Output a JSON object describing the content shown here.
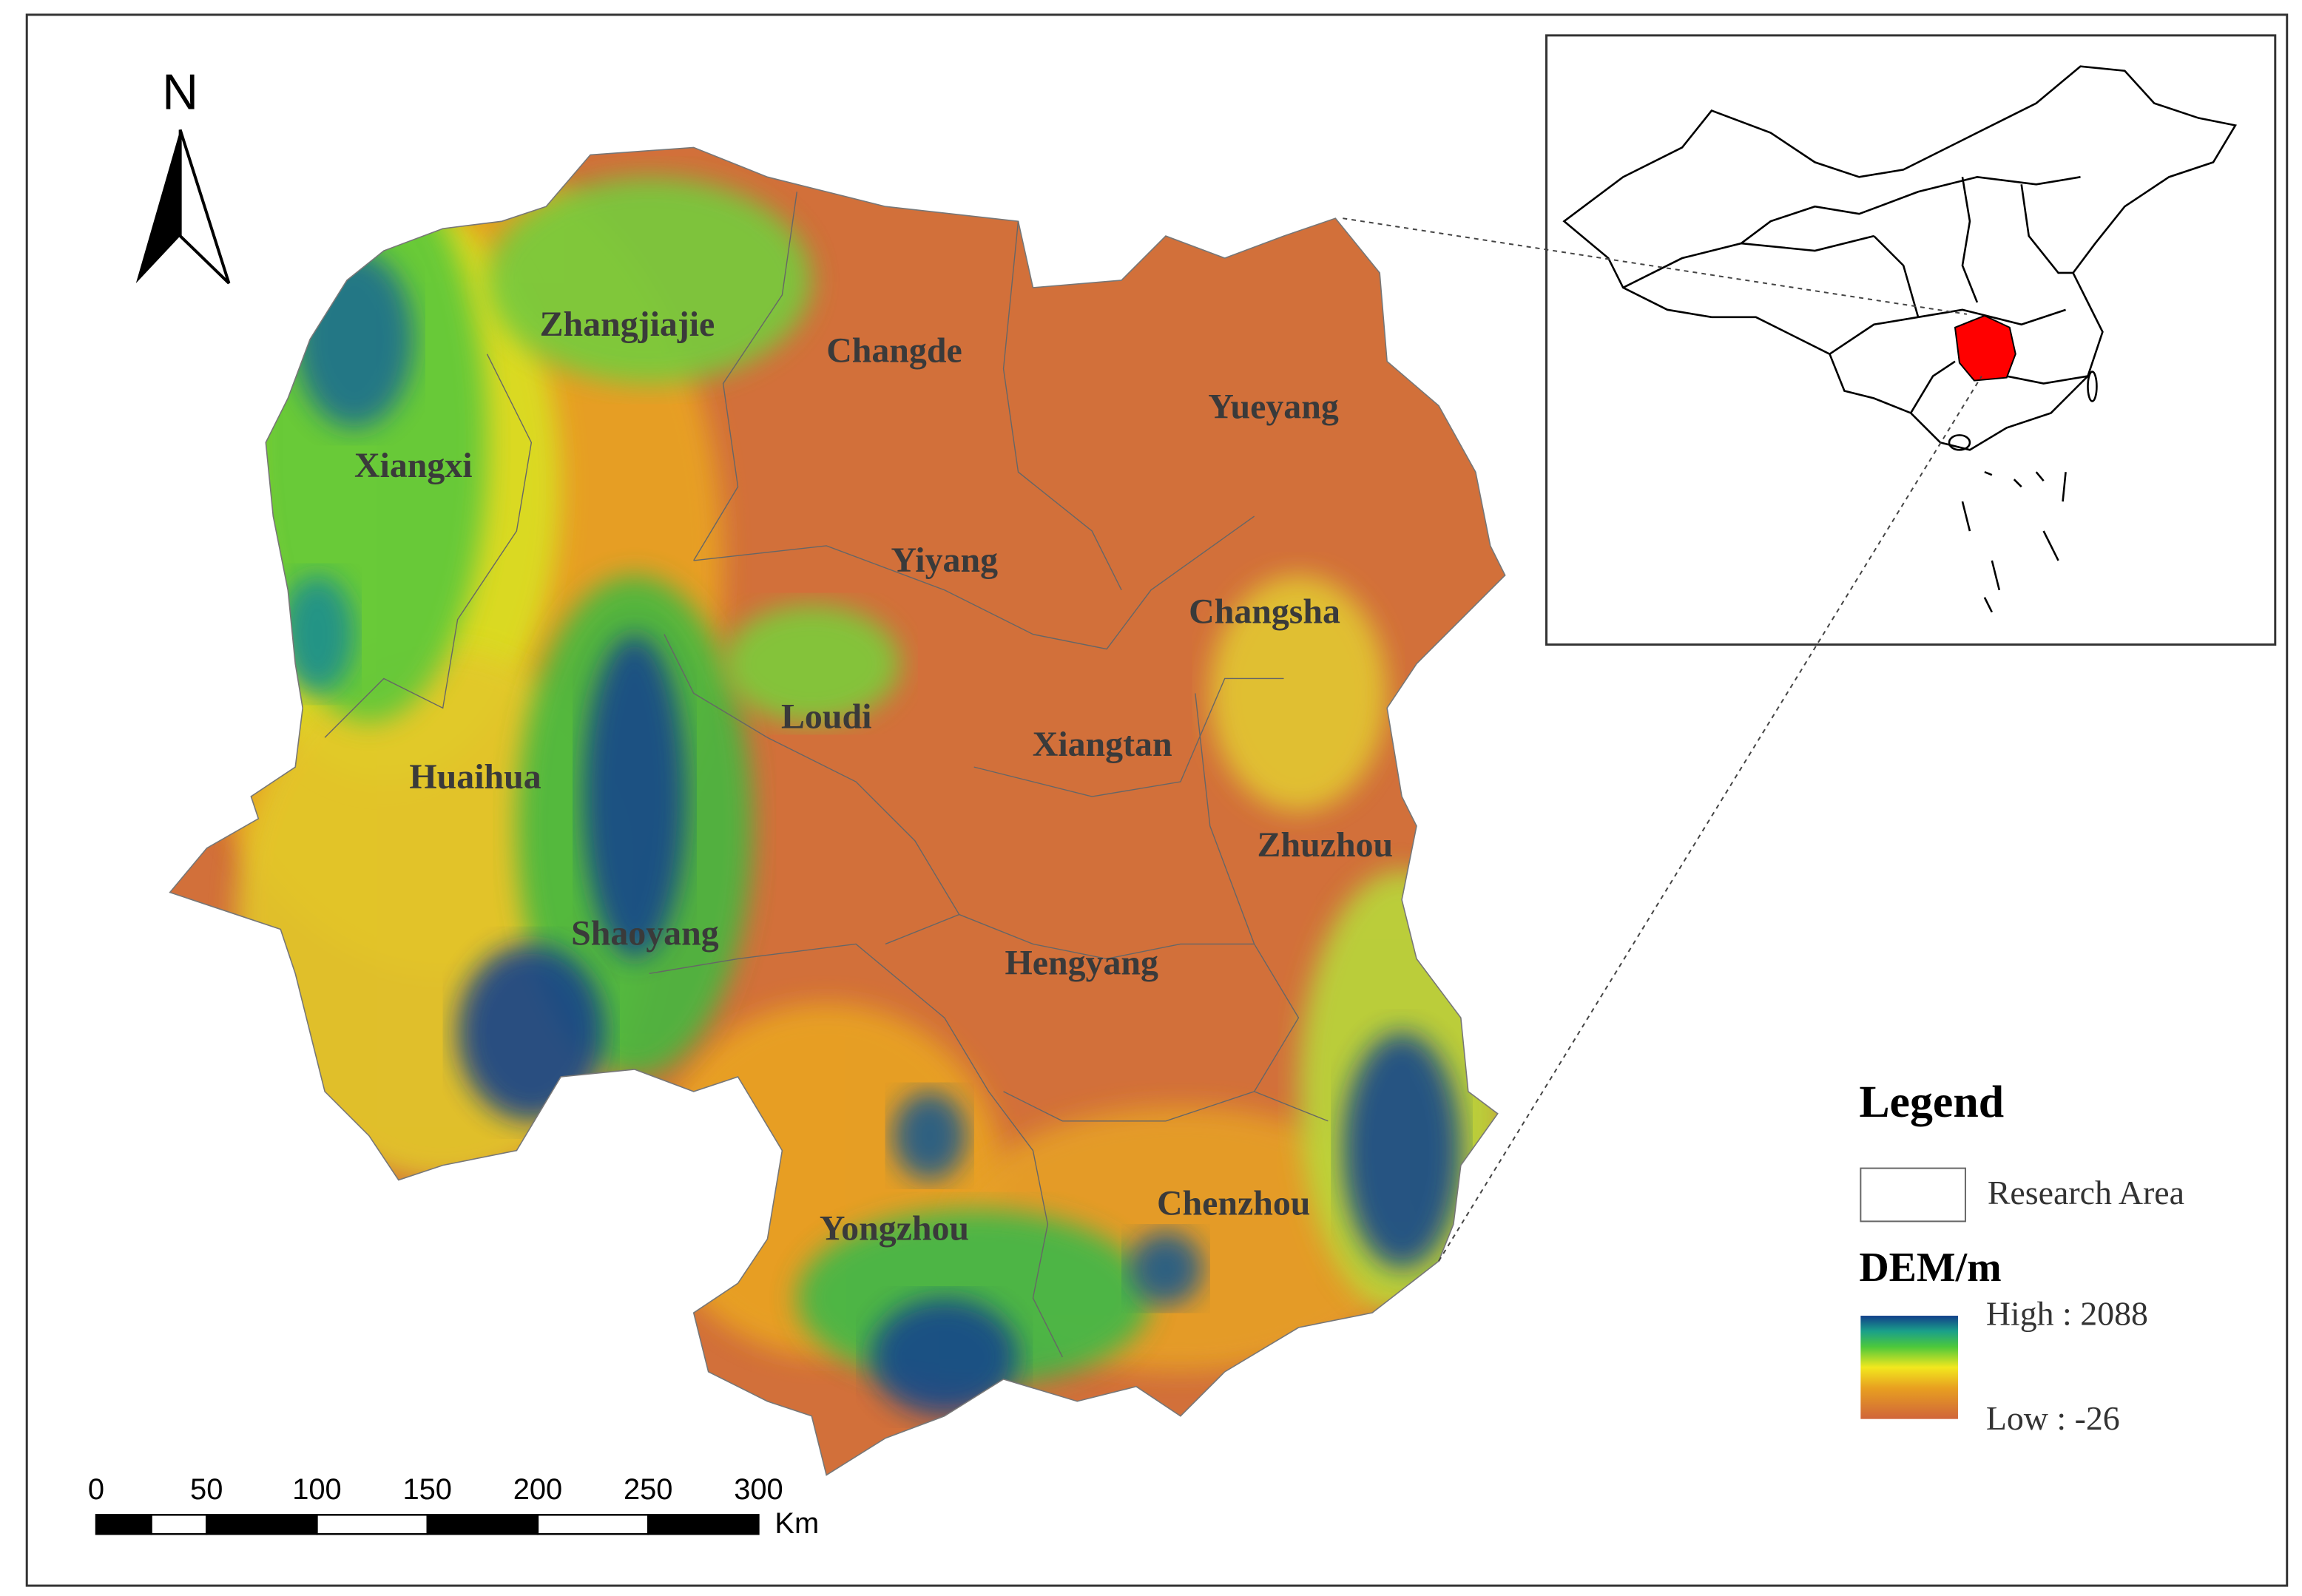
{
  "north": "N",
  "regions": [
    "Zhangjiajie",
    "Changde",
    "Yueyang",
    "Xiangxi",
    "Yiyang",
    "Changsha",
    "Loudi",
    "Xiangtan",
    "Huaihua",
    "Zhuzhou",
    "Shaoyang",
    "Hengyang",
    "Yongzhou",
    "Chenzhou"
  ],
  "legend": {
    "title": "Legend",
    "research_area": "Research Area",
    "dem_title": "DEM/m",
    "high": "High : 2088",
    "low": "Low : -26"
  },
  "scale_bar": {
    "ticks": [
      0,
      50,
      100,
      150,
      200,
      250,
      300
    ],
    "unit": "Km"
  }
}
